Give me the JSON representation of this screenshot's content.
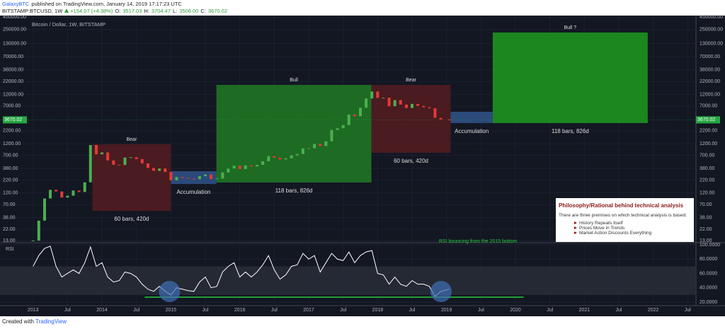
{
  "header": {
    "author": "GalaxyBTC",
    "published": "published on TradingView.com, January 14, 2019 17:17:23 UTC",
    "symbol": "BITSTAMP:BTCUSD, 1W",
    "change": "+154.07 (+4.38%)",
    "ohlc": [
      {
        "label": "O:",
        "value": "3517.03"
      },
      {
        "label": "H:",
        "value": "3704.47"
      },
      {
        "label": "L:",
        "value": "3506.00"
      },
      {
        "label": "C:",
        "value": "3670.02"
      }
    ]
  },
  "footer": {
    "text": "Created with",
    "brand": "TradingView"
  },
  "chart_data": [
    {
      "type": "candlestick",
      "title": "Bitcoin / Dollar, 1W, BITSTAMP",
      "log_scale": true,
      "x": [
        2013,
        2013.083,
        2013.167,
        2013.25,
        2013.333,
        2013.417,
        2013.5,
        2013.583,
        2013.667,
        2013.75,
        2013.833,
        2013.917,
        2014,
        2014.083,
        2014.167,
        2014.25,
        2014.333,
        2014.417,
        2014.5,
        2014.583,
        2014.667,
        2014.75,
        2014.833,
        2014.917,
        2015,
        2015.083,
        2015.167,
        2015.25,
        2015.333,
        2015.417,
        2015.5,
        2015.583,
        2015.667,
        2015.75,
        2015.833,
        2015.917,
        2016,
        2016.083,
        2016.167,
        2016.25,
        2016.333,
        2016.417,
        2016.5,
        2016.583,
        2016.667,
        2016.75,
        2016.833,
        2016.917,
        2017,
        2017.083,
        2017.167,
        2017.25,
        2017.333,
        2017.417,
        2017.5,
        2017.583,
        2017.667,
        2017.75,
        2017.833,
        2017.917,
        2018,
        2018.083,
        2018.167,
        2018.25,
        2018.333,
        2018.417,
        2018.5,
        2018.583,
        2018.667,
        2018.75,
        2018.833,
        2018.917,
        2019.04
      ],
      "values": [
        13,
        33,
        93,
        139,
        129,
        97,
        106,
        135,
        126,
        198,
        1130,
        732,
        800,
        550,
        450,
        445,
        630,
        640,
        585,
        480,
        387,
        338,
        378,
        320,
        217,
        254,
        244,
        236,
        230,
        263,
        284,
        230,
        236,
        314,
        377,
        430,
        368,
        437,
        416,
        448,
        531,
        673,
        624,
        575,
        609,
        698,
        742,
        963,
        970,
        1190,
        1080,
        1348,
        2286,
        2480,
        2875,
        4703,
        4338,
        6468,
        9947,
        13850,
        10220,
        10330,
        6930,
        9240,
        7500,
        6390,
        7730,
        7030,
        6625,
        6300,
        4017,
        3742,
        3670
      ],
      "colors": {
        "up": "#4caf50",
        "down": "#e53935"
      },
      "last": 3670.02,
      "last_color": "#26a843",
      "xlim": [
        2012.52,
        2022.62
      ],
      "xticks": [
        2013,
        {
          "value": 2013.5,
          "label": "Jul"
        },
        2014,
        {
          "value": 2014.5,
          "label": "Jul"
        },
        2015,
        {
          "value": 2015.5,
          "label": "Jul"
        },
        2016,
        {
          "value": 2016.5,
          "label": "Jul"
        },
        2017,
        {
          "value": 2017.5,
          "label": "Jul"
        },
        2018,
        {
          "value": 2018.5,
          "label": "Jul"
        },
        2019,
        {
          "value": 2019.5,
          "label": "Jul"
        },
        2020,
        {
          "value": 2020.5,
          "label": "Jul"
        },
        2021,
        {
          "value": 2021.5,
          "label": "Jul"
        },
        2022,
        {
          "value": 2022.5,
          "label": "Jul"
        }
      ],
      "ylim": [
        13,
        450000
      ],
      "yticks": [
        {
          "value": 13,
          "label": "13.00"
        },
        {
          "value": 22,
          "label": "22.00"
        },
        {
          "value": 38,
          "label": "38.00"
        },
        {
          "value": 70,
          "label": "70.00"
        },
        {
          "value": 120,
          "label": "120.00"
        },
        {
          "value": 220,
          "label": "220.00"
        },
        {
          "value": 380,
          "label": "380.00"
        },
        {
          "value": 700,
          "label": "700.00"
        },
        {
          "value": 1200,
          "label": "1200.00"
        },
        {
          "value": 2200,
          "label": "2200.00"
        },
        {
          "value": 7000,
          "label": "7000.00"
        },
        {
          "value": 12000,
          "label": "12000.00"
        },
        {
          "value": 22000,
          "label": "22000.00"
        },
        {
          "value": 38000,
          "label": "38000.00"
        },
        {
          "value": 70000,
          "label": "70000.00"
        },
        {
          "value": 130000,
          "label": "130000.00"
        },
        {
          "value": 250000,
          "label": "250000.00"
        },
        {
          "value": 450000,
          "label": "450000.00"
        }
      ],
      "grid": true,
      "zones": [
        {
          "x": [
            2013.86,
            2015.0
          ],
          "y": [
            52,
            1170
          ],
          "color": "#4a1b20",
          "top_label": "Bear",
          "bottom_label": "60 bars, 420d"
        },
        {
          "x": [
            2015.0,
            2015.66
          ],
          "y": [
            183,
            333
          ],
          "color": "#2b4a7a",
          "bottom_label": "Accumulation"
        },
        {
          "x": [
            2015.66,
            2017.91
          ],
          "y": [
            196,
            18800
          ],
          "color": "#1e6b23",
          "top_label": "Bull",
          "bottom_label": "118 bars, 826d"
        },
        {
          "x": [
            2017.91,
            2019.06
          ],
          "y": [
            787,
            18800
          ],
          "color": "#4a1b20",
          "top_label": "Bear",
          "bottom_label": "60 bars, 420d"
        },
        {
          "x": [
            2019.06,
            2019.67
          ],
          "y": [
            3155,
            5360
          ],
          "color": "#2b4a7a",
          "bottom_label": "Accumulation"
        },
        {
          "x": [
            2019.67,
            2021.92
          ],
          "y": [
            3155,
            218000
          ],
          "color": "#1c861f",
          "top_label": "Bull ?",
          "bottom_label": "118 bars, 826d"
        }
      ],
      "note": "RSI bouncing from the 2015 bottom",
      "info": {
        "title": "Philosophy/Rational behind technical analysis",
        "intro": "There are three premises on which technical analysis is based:",
        "items": [
          "History Repeats Itself",
          "Prices Move in Trends",
          "Market Action Discounts Everything"
        ]
      }
    },
    {
      "type": "line",
      "name": "RSI",
      "color": "#ffffff",
      "values": [
        70,
        85,
        95,
        98,
        70,
        55,
        60,
        65,
        60,
        75,
        97,
        70,
        75,
        55,
        48,
        50,
        62,
        60,
        55,
        45,
        38,
        35,
        42,
        35,
        30,
        40,
        38,
        36,
        35,
        48,
        55,
        40,
        42,
        62,
        70,
        75,
        55,
        62,
        55,
        62,
        72,
        85,
        65,
        52,
        58,
        70,
        72,
        88,
        80,
        85,
        62,
        75,
        88,
        80,
        78,
        90,
        75,
        85,
        90,
        92,
        60,
        58,
        45,
        55,
        45,
        42,
        50,
        45,
        45,
        42,
        28,
        35,
        38
      ],
      "band": [
        30,
        70
      ],
      "band_color": "#2a2e39",
      "ylim": [
        17,
        100
      ],
      "yticks": [
        {
          "value": 20,
          "label": "20.0000"
        },
        {
          "value": 40,
          "label": "40.0000"
        },
        {
          "value": 60,
          "label": "60.0000"
        },
        {
          "value": 80,
          "label": "80.0000"
        },
        {
          "value": 100,
          "label": "100.0000"
        }
      ],
      "support": {
        "x": [
          2014.62,
          2020.12
        ],
        "y": 26.9,
        "color": "#27c93f"
      },
      "circles": [
        {
          "x": 2014.98,
          "y": 34.8
        },
        {
          "x": 2018.92,
          "y": 34.8
        }
      ],
      "circle_color": "#3f6fb5"
    }
  ]
}
